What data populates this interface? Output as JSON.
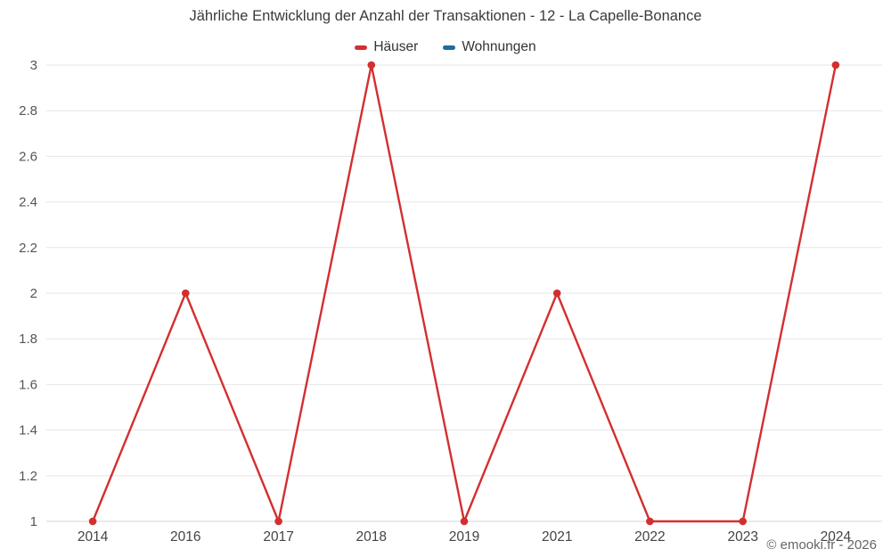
{
  "title": "Jährliche Entwicklung der Anzahl der Transaktionen - 12 - La Capelle-Bonance",
  "legend": {
    "items": [
      {
        "label": "Häuser",
        "color": "#d32f2f"
      },
      {
        "label": "Wohnungen",
        "color": "#1a6d9e"
      }
    ]
  },
  "footer": {
    "credits": "© emooki.fr - 2026"
  },
  "chart_data": {
    "type": "line",
    "title": "Jährliche Entwicklung der Anzahl der Transaktionen - 12 - La Capelle-Bonance",
    "categories": [
      "2014",
      "2016",
      "2017",
      "2018",
      "2019",
      "2021",
      "2022",
      "2023",
      "2024"
    ],
    "series": [
      {
        "name": "Häuser",
        "color": "#d32f2f",
        "values": [
          1,
          2,
          1,
          3,
          1,
          2,
          1,
          1,
          3
        ]
      },
      {
        "name": "Wohnungen",
        "color": "#1a6d9e",
        "values": []
      }
    ],
    "xlabel": "",
    "ylabel": "",
    "ylim": [
      1,
      3
    ],
    "ytick_step": 0.2,
    "ytick_labels": [
      "1",
      "1.2",
      "1.4",
      "1.6",
      "1.8",
      "2",
      "2.2",
      "2.4",
      "2.6",
      "2.8",
      "3"
    ],
    "grid": "horizontal",
    "legend_position": "top"
  }
}
